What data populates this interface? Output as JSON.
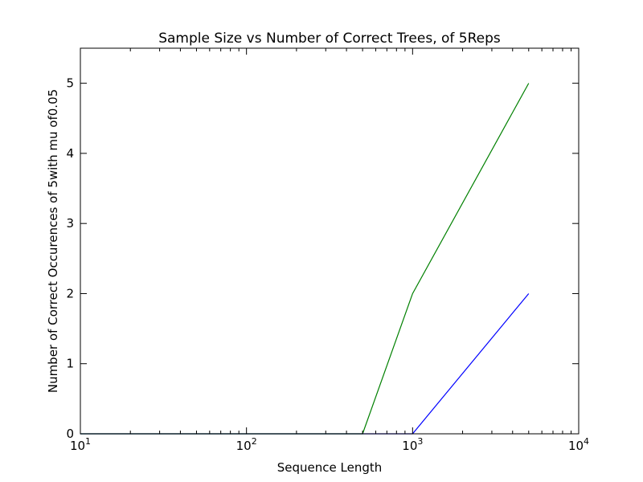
{
  "chart_data": {
    "type": "line",
    "title": "Sample Size vs Number of Correct Trees, of 5Reps",
    "xlabel": "Sequence Length",
    "ylabel": "Number of Correct Occurences of 5with mu of0.05",
    "x_scale": "log",
    "xlim": [
      10,
      10000
    ],
    "ylim": [
      0,
      5.5
    ],
    "x_ticks": [
      {
        "base": "10",
        "exp": "1",
        "value": 10
      },
      {
        "base": "10",
        "exp": "2",
        "value": 100
      },
      {
        "base": "10",
        "exp": "3",
        "value": 1000
      },
      {
        "base": "10",
        "exp": "4",
        "value": 10000
      }
    ],
    "y_ticks": [
      0,
      1,
      2,
      3,
      4,
      5
    ],
    "grid": false,
    "series": [
      {
        "color": "#0000ff",
        "x": [
          10,
          100,
          500,
          1000,
          5000
        ],
        "y": [
          0,
          0,
          0,
          0,
          2
        ]
      },
      {
        "color": "#008000",
        "x": [
          10,
          100,
          500,
          1000,
          5000
        ],
        "y": [
          0,
          0,
          0,
          2,
          5
        ]
      }
    ]
  }
}
